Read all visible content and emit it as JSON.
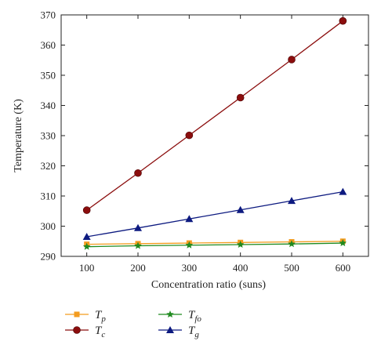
{
  "chart_data": {
    "type": "line",
    "xlabel": "Concentration ratio (suns)",
    "ylabel": "Temperature (K)",
    "x": [
      100,
      200,
      300,
      400,
      500,
      600
    ],
    "xlim": [
      50,
      650
    ],
    "ylim": [
      290,
      370
    ],
    "xticks": [
      100,
      200,
      300,
      400,
      500,
      600
    ],
    "yticks": [
      290,
      300,
      310,
      320,
      330,
      340,
      350,
      360,
      370
    ],
    "grid": false,
    "legend_position": "bottom",
    "series": [
      {
        "name": "T",
        "sub": "p",
        "color": "#f39c1f",
        "marker": "square",
        "values": [
          294.0,
          294.2,
          294.4,
          294.6,
          294.8,
          295.0
        ]
      },
      {
        "name": "T",
        "sub": "c",
        "color": "#8b0d0d",
        "marker": "circle",
        "values": [
          305.3,
          317.6,
          330.1,
          342.6,
          355.2,
          368.0
        ]
      },
      {
        "name": "T",
        "sub": "fo",
        "color": "#1f8a1f",
        "marker": "star",
        "values": [
          293.2,
          293.5,
          293.7,
          293.9,
          294.1,
          294.4
        ]
      },
      {
        "name": "T",
        "sub": "g",
        "color": "#0d1a80",
        "marker": "triangle",
        "values": [
          296.5,
          299.4,
          302.4,
          305.4,
          308.4,
          311.4
        ]
      }
    ]
  }
}
